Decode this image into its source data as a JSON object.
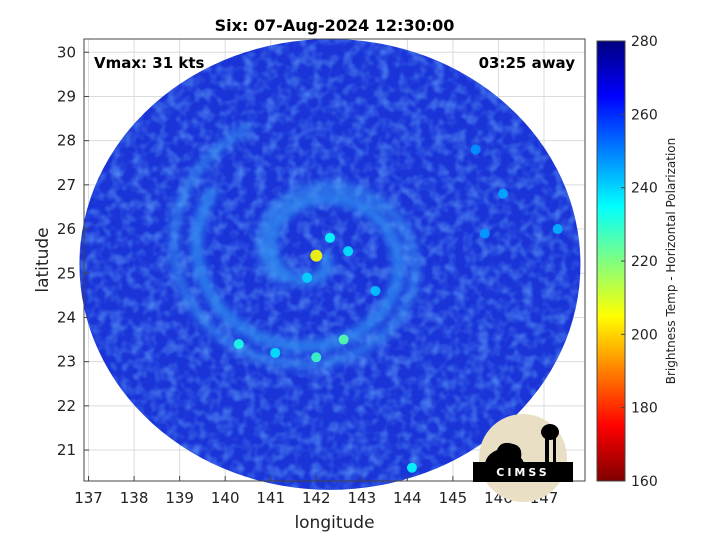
{
  "chart_data": {
    "type": "heatmap",
    "title": "Six: 07-Aug-2024 12:30:00",
    "xlabel": "longitude",
    "ylabel": "latitude",
    "xlim": [
      136.9,
      147.9
    ],
    "ylim": [
      20.3,
      30.3
    ],
    "xticks": [
      137,
      138,
      139,
      140,
      141,
      142,
      143,
      144,
      145,
      146,
      147
    ],
    "yticks": [
      21,
      22,
      23,
      24,
      25,
      26,
      27,
      28,
      29,
      30
    ],
    "grid": true,
    "annotations": {
      "vmax": "Vmax: 31 kts",
      "time_away": "03:25 away"
    },
    "swath": {
      "center_lon": 142.3,
      "center_lat": 25.2,
      "radius_lon": 5.5,
      "radius_lat": 5.1
    },
    "storm_center": {
      "lon": 142.0,
      "lat": 25.4
    },
    "colorbar": {
      "label": "Brightness Temp - Horizontal Polarization",
      "min": 160,
      "max": 280,
      "ticks": [
        160,
        180,
        200,
        220,
        240,
        260,
        280
      ],
      "colormap": "jet"
    },
    "features": [
      {
        "lon": 142.0,
        "lat": 25.4,
        "value": 205
      },
      {
        "lon": 142.3,
        "lat": 25.8,
        "value": 235
      },
      {
        "lon": 142.7,
        "lat": 25.5,
        "value": 238
      },
      {
        "lon": 141.8,
        "lat": 24.9,
        "value": 240
      },
      {
        "lon": 143.3,
        "lat": 24.6,
        "value": 242
      },
      {
        "lon": 142.6,
        "lat": 23.5,
        "value": 225
      },
      {
        "lon": 142.0,
        "lat": 23.1,
        "value": 228
      },
      {
        "lon": 140.3,
        "lat": 23.4,
        "value": 232
      },
      {
        "lon": 141.1,
        "lat": 23.2,
        "value": 238
      },
      {
        "lon": 144.1,
        "lat": 20.6,
        "value": 235
      },
      {
        "lon": 145.5,
        "lat": 27.8,
        "value": 248
      },
      {
        "lon": 146.1,
        "lat": 26.8,
        "value": 245
      },
      {
        "lon": 147.3,
        "lat": 26.0,
        "value": 244
      },
      {
        "lon": 145.7,
        "lat": 25.9,
        "value": 247
      }
    ]
  },
  "logo": {
    "text": "CIMSS"
  }
}
